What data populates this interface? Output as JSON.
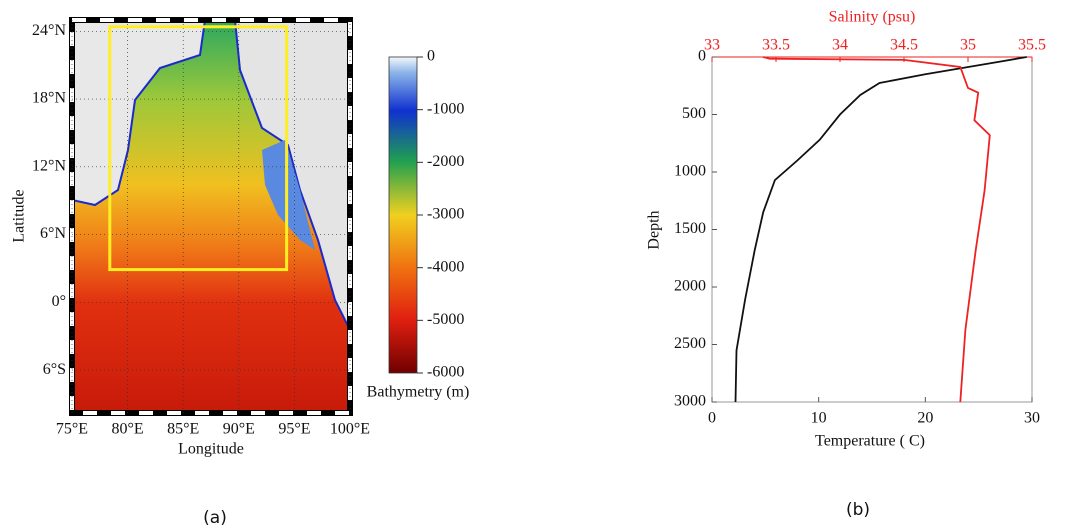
{
  "chart_data": [
    {
      "type": "map",
      "caption": "(a)",
      "x_label": "Longitude",
      "y_label": "Latitude",
      "xlim": [
        75,
        100
      ],
      "xticks": [
        {
          "value": 75,
          "label": "75°E"
        },
        {
          "value": 80,
          "label": "80°E"
        },
        {
          "value": 85,
          "label": "85°E"
        },
        {
          "value": 90,
          "label": "90°E"
        },
        {
          "value": 95,
          "label": "95°E"
        },
        {
          "value": 100,
          "label": "100°E"
        }
      ],
      "ylim": [
        -9.8,
        25
      ],
      "yticks": [
        {
          "value": 24,
          "label": "24°N"
        },
        {
          "value": 18,
          "label": "18°N"
        },
        {
          "value": 12,
          "label": "12°N"
        },
        {
          "value": 6,
          "label": "6°N"
        },
        {
          "value": 0,
          "label": "0°"
        },
        {
          "value": -6,
          "label": "6°S"
        }
      ],
      "grid": true,
      "box": {
        "color": "#ffee22",
        "xlim": [
          78.4,
          94.3
        ],
        "ylim": [
          2.9,
          24.4
        ]
      },
      "colorbar": {
        "label": "Bathymetry (m)",
        "lim": [
          -6000,
          0
        ],
        "ticks": [
          0,
          -1000,
          -2000,
          -3000,
          -4000,
          -5000,
          -6000
        ]
      }
    },
    {
      "type": "line",
      "caption": "(b)",
      "x_label": "Temperature ( C)",
      "x2_label": "Salinity (psu)",
      "y_label": "Depth",
      "xlim": [
        0,
        30
      ],
      "xticks": [
        0,
        10,
        20,
        30
      ],
      "x2lim": [
        33,
        35.5
      ],
      "x2ticks": [
        33,
        33.5,
        34,
        34.5,
        35,
        35.5
      ],
      "ylim": [
        3000,
        0
      ],
      "yticks": [
        0,
        500,
        1000,
        1500,
        2000,
        2500,
        3000
      ],
      "series": [
        {
          "color": "#111111",
          "axis": "x",
          "x": [
            29.5,
            27,
            20,
            15.7,
            13.9,
            12,
            10.1,
            8,
            5.9,
            4.8,
            4,
            3.1,
            2.3,
            2.2
          ],
          "y": [
            0,
            40,
            150,
            226,
            330,
            500,
            720,
            900,
            1070,
            1350,
            1680,
            2110,
            2550,
            3000
          ]
        },
        {
          "color": "#ee2222",
          "axis": "x2",
          "x": [
            33.4,
            33.45,
            34.5,
            34.94,
            35.0,
            35.08,
            35.05,
            35.17,
            35.13,
            35.06,
            34.98,
            34.94
          ],
          "y": [
            0,
            15,
            25,
            87,
            270,
            310,
            550,
            680,
            1160,
            1680,
            2370,
            3000
          ]
        }
      ]
    }
  ]
}
